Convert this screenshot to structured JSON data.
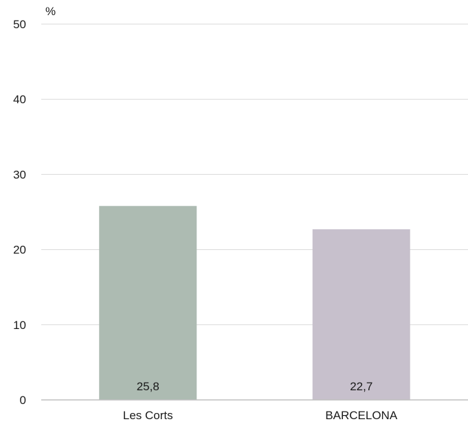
{
  "chart_data": {
    "type": "bar",
    "categories": [
      "Les Corts",
      "BARCELONA"
    ],
    "values": [
      25.8,
      22.7
    ],
    "data_labels": [
      "25,8",
      "22,7"
    ],
    "unit": "%",
    "yticks": [
      0,
      10,
      20,
      30,
      40,
      50
    ],
    "ylim": [
      0,
      50
    ],
    "grid": true,
    "bar_colors": [
      "#adbbb2",
      "#c7c0cc"
    ],
    "grid_color": "#d9d9d9",
    "axis_color": "#bfbfbf"
  }
}
